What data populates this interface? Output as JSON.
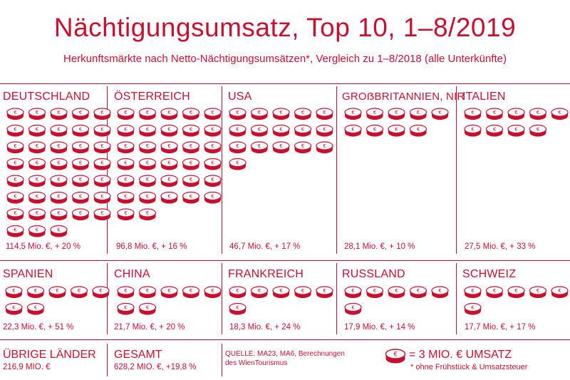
{
  "title": "Nächtigungsumsatz, Top 10, 1–8/2019",
  "subtitle": "Herkunftsmärkte nach Netto-Nächtigungsumsätzen*, Vergleich zu 1–8/2018 (alle Unterkünfte)",
  "colors": {
    "accent": "#c8102e",
    "background": "#ffffff"
  },
  "chart_data": {
    "type": "pictogram",
    "unit": "= 3 MIO. € UMSATZ",
    "categories": [
      "DEUTSCHLAND",
      "ÖSTERREICH",
      "USA",
      "GROẞBRITANNIEN, NIR",
      "ITALIEN",
      "SPANIEN",
      "CHINA",
      "FRANKREICH",
      "RUSSLAND",
      "SCHWEIZ"
    ],
    "values": [
      114.5,
      96.8,
      46.7,
      28.1,
      27.5,
      22.3,
      21.7,
      18.3,
      17.9,
      17.7
    ],
    "coins": [
      38,
      32,
      16,
      9,
      9,
      7,
      7,
      6,
      6,
      6
    ],
    "value_labels": [
      "114,5 Mio. €, + 20 %",
      "96,8 Mio. €, + 16 %",
      "46,7 Mio. €, + 17 %",
      "28,1 Mio. €, + 10 %",
      "27,5 Mio. €, + 33 %",
      "22,3 Mio. €, + 51 %",
      "21,7 Mio. €, + 20 %",
      "18,3 Mio. €, + 24 %",
      "17,9 Mio. €, + 14 %",
      "17,7 Mio. €, + 17 %"
    ],
    "change_percent": [
      20,
      16,
      17,
      10,
      33,
      51,
      20,
      24,
      14,
      17
    ]
  },
  "others": {
    "label": "ÜBRIGE LÄNDER",
    "value": "216,9 MIO. €"
  },
  "total": {
    "label": "GESAMT",
    "value": "628,2 MIO. €, +19,8 %"
  },
  "source": "QUELLE: MA23, MA6, Berechnungen des WienTourismus",
  "legend": {
    "coin_symbol": "€",
    "label": "= 3 MIO. € UMSATZ",
    "note": "* ohne Frühstück & Umsatzsteuer"
  }
}
